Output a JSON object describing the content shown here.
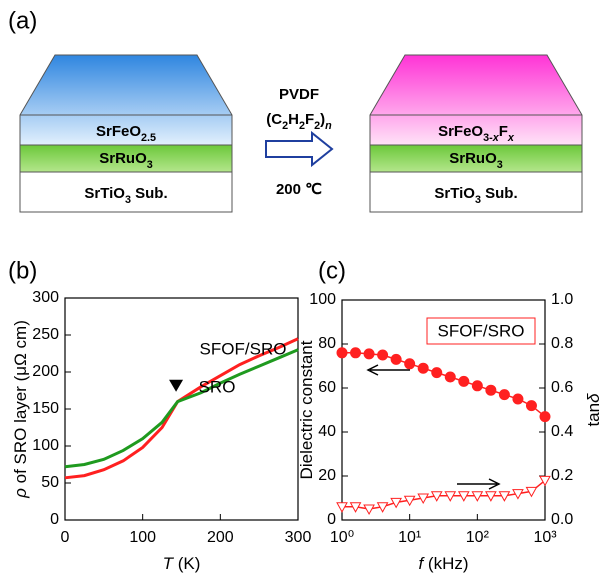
{
  "panel_labels": [
    "(a)",
    "(b)",
    "(c)"
  ],
  "diagram": {
    "left_stack": [
      [
        {
          "text": "SrFeO"
        },
        {
          "text": "2.5",
          "sub": true
        }
      ],
      [
        {
          "text": "SrRuO"
        },
        {
          "text": "3",
          "sub": true
        }
      ],
      [
        {
          "text": "SrTiO"
        },
        {
          "text": "3",
          "sub": true
        },
        {
          "text": " Sub."
        }
      ]
    ],
    "right_stack": [
      [
        {
          "text": "SrFeO"
        },
        {
          "text": "3-",
          "sub": true
        },
        {
          "text": "x",
          "sub": true,
          "italic": true
        },
        {
          "text": "F"
        },
        {
          "text": "x",
          "sub": true,
          "italic": true
        }
      ],
      [
        {
          "text": "SrRuO"
        },
        {
          "text": "3",
          "sub": true
        }
      ],
      [
        {
          "text": "SrTiO"
        },
        {
          "text": "3",
          "sub": true
        },
        {
          "text": " Sub."
        }
      ]
    ],
    "reagent": "PVDF",
    "formula": [
      {
        "text": "(C"
      },
      {
        "text": "2",
        "sub": true
      },
      {
        "text": "H"
      },
      {
        "text": "2",
        "sub": true
      },
      {
        "text": "F"
      },
      {
        "text": "2",
        "sub": true
      },
      {
        "text": ")"
      },
      {
        "text": "n",
        "sub": true,
        "italic": true
      }
    ],
    "temperature": "200 ℃"
  },
  "chart_data": [
    {
      "type": "line",
      "xlabel": [
        {
          "text": "T",
          "italic": true
        },
        {
          "text": " (K)"
        }
      ],
      "ylabel": [
        {
          "text": "ρ",
          "italic": true
        },
        {
          "text": " of SRO layer (μΩ cm)"
        }
      ],
      "x": [
        0,
        25,
        50,
        75,
        100,
        125,
        145,
        175,
        200,
        225,
        250,
        275,
        300
      ],
      "series": [
        {
          "name": "SFOF/SRO",
          "color": "#ff2020",
          "values": [
            57,
            60,
            68,
            80,
            98,
            125,
            160,
            180,
            195,
            210,
            222,
            233,
            245
          ]
        },
        {
          "name": "SRO",
          "color": "#1f9a1f",
          "values": [
            72,
            75,
            82,
            94,
            110,
            132,
            160,
            172,
            185,
            197,
            208,
            219,
            230
          ]
        }
      ],
      "marker": {
        "x": 143,
        "y": 176
      },
      "xlim": [
        0,
        300
      ],
      "xticks": [
        0,
        100,
        200,
        300
      ],
      "ylim": [
        0,
        300
      ],
      "yticks": [
        0,
        50,
        100,
        150,
        200,
        250,
        300
      ]
    },
    {
      "type": "line",
      "xlabel": [
        {
          "text": "f",
          "italic": true
        },
        {
          "text": " (kHz)"
        }
      ],
      "ylabel": [
        {
          "text": "Dielectric constant"
        }
      ],
      "y2label": [
        {
          "text": "tan"
        },
        {
          "text": "δ",
          "italic": true
        }
      ],
      "legend_label": "SFOF/SRO",
      "log_x": true,
      "x": [
        1,
        1.585,
        2.512,
        3.981,
        6.31,
        10,
        15.85,
        25.12,
        39.81,
        63.1,
        100,
        158.5,
        251.2,
        398.1,
        631,
        1000
      ],
      "series": [
        {
          "color": "#ff2020",
          "marker": "circle",
          "filled": true,
          "values": [
            76,
            76,
            75.5,
            75,
            73,
            71,
            69,
            67,
            65,
            63,
            61,
            59,
            57,
            55,
            52,
            47
          ]
        },
        {
          "color": "#ff2020",
          "marker": "triangle",
          "filled": false,
          "axis": "y2",
          "values": [
            0.06,
            0.06,
            0.05,
            0.06,
            0.08,
            0.09,
            0.1,
            0.11,
            0.11,
            0.11,
            0.11,
            0.11,
            0.11,
            0.12,
            0.13,
            0.18
          ]
        }
      ],
      "xlim": [
        1,
        1000
      ],
      "xticks": [
        {
          "value": 1,
          "label": "10⁰"
        },
        {
          "value": 10,
          "label": "10¹"
        },
        {
          "value": 100,
          "label": "10²"
        },
        {
          "value": 1000,
          "label": "10³"
        }
      ],
      "ylim": [
        0,
        100
      ],
      "yticks": [
        0,
        20,
        40,
        60,
        80,
        100
      ],
      "y2lim": [
        0,
        1
      ],
      "y2ticks": [
        {
          "value": 0,
          "label": "0.0"
        },
        0.2,
        0.4,
        0.6,
        0.8,
        {
          "value": 1,
          "label": "1.0"
        }
      ]
    }
  ]
}
